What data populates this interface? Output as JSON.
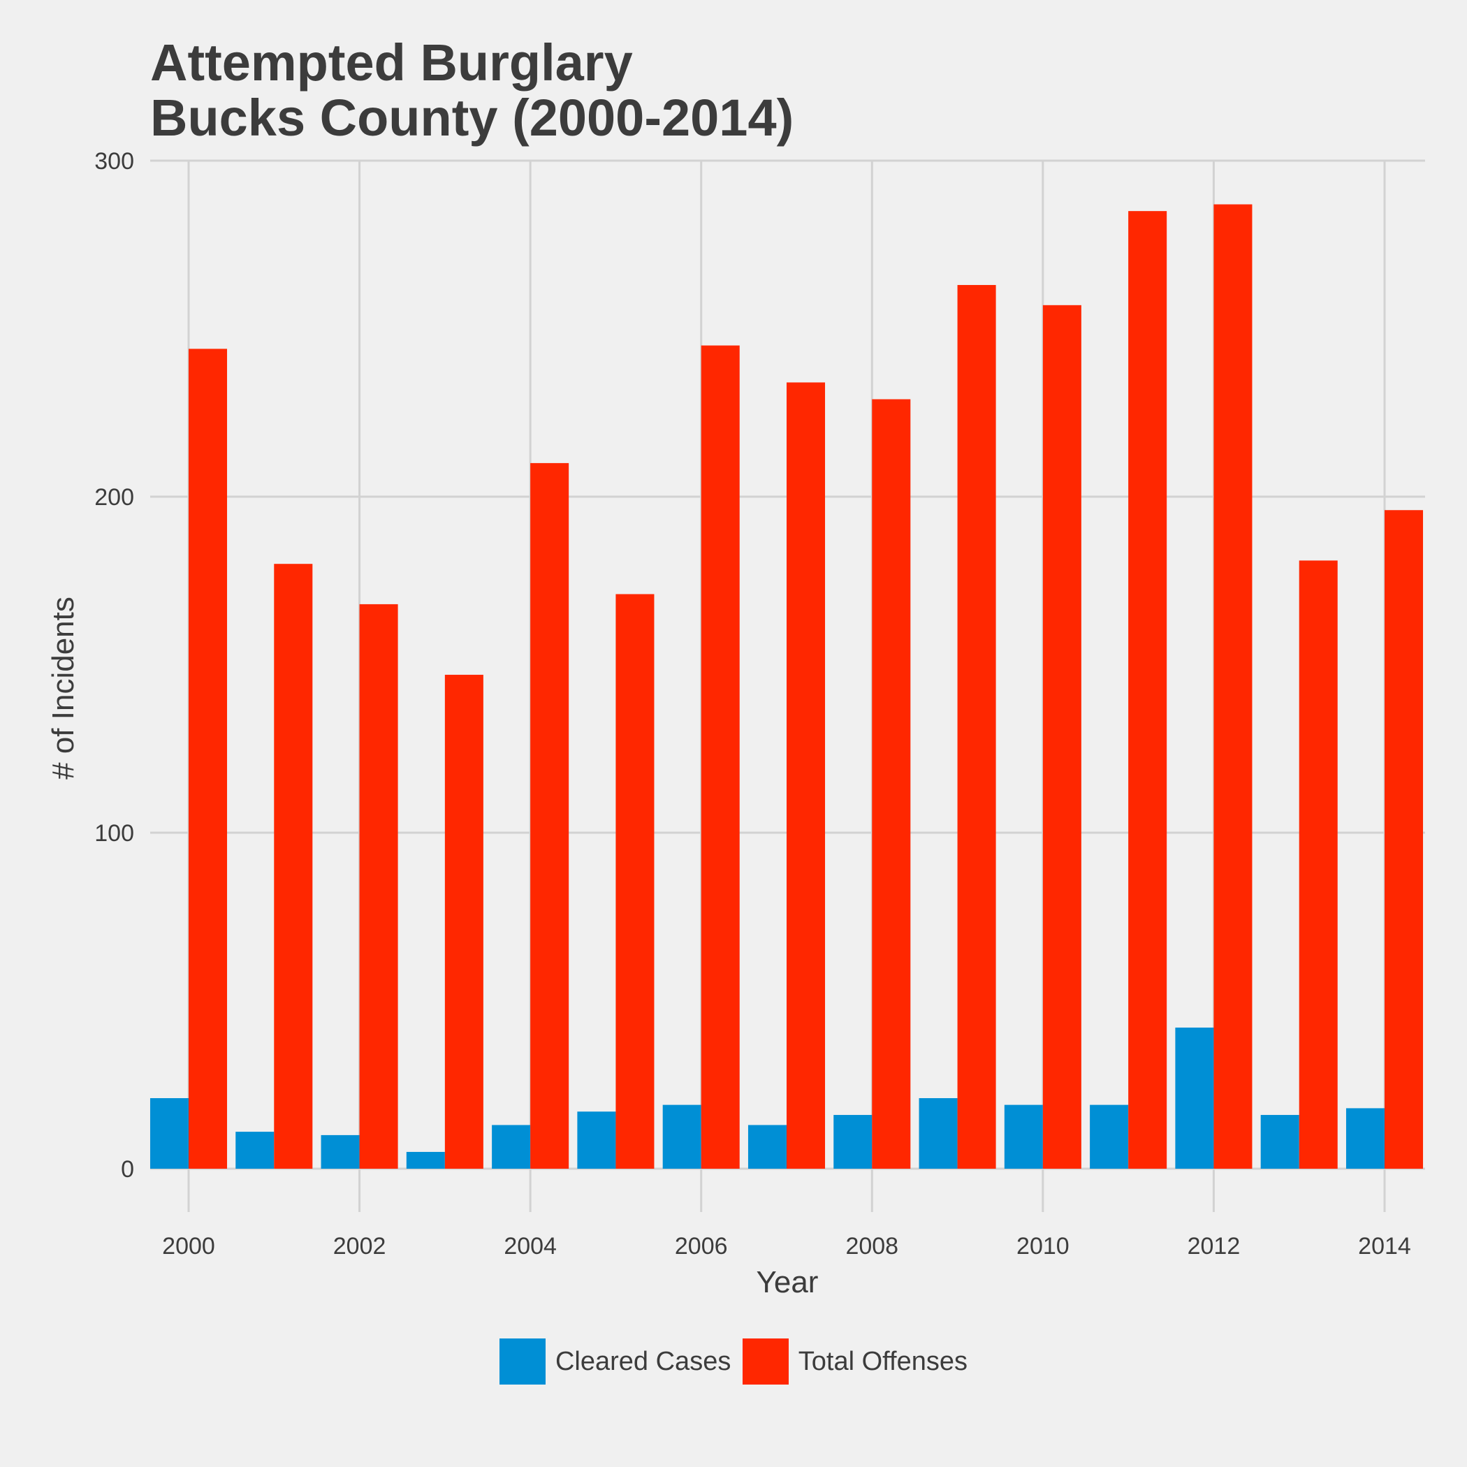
{
  "colors": {
    "background": "#f0f0f0",
    "grid": "#d2d2d2",
    "text": "#3c3c3c",
    "cleared": "#008fd5",
    "total": "#ff2700"
  },
  "chart_data": {
    "type": "bar",
    "title_line1": "Attempted Burglary",
    "title_line2": "Bucks County (2000-2014)",
    "xlabel": "Year",
    "ylabel": "# of Incidents",
    "ylim": [
      0,
      300
    ],
    "yticks": [
      0,
      100,
      200,
      300
    ],
    "xticks": [
      2000,
      2002,
      2004,
      2006,
      2008,
      2010,
      2012,
      2014
    ],
    "grid": true,
    "legend_position": "bottom",
    "categories": [
      2000,
      2001,
      2002,
      2003,
      2004,
      2005,
      2006,
      2007,
      2008,
      2009,
      2010,
      2011,
      2012,
      2013,
      2014
    ],
    "series": [
      {
        "name": "Cleared Cases",
        "color": "#008fd5",
        "values": [
          21,
          11,
          10,
          5,
          13,
          17,
          19,
          13,
          16,
          21,
          19,
          19,
          42,
          16,
          18
        ]
      },
      {
        "name": "Total Offenses",
        "color": "#ff2700",
        "values": [
          244,
          180,
          168,
          147,
          210,
          171,
          245,
          234,
          229,
          263,
          257,
          285,
          287,
          181,
          196
        ]
      }
    ]
  }
}
